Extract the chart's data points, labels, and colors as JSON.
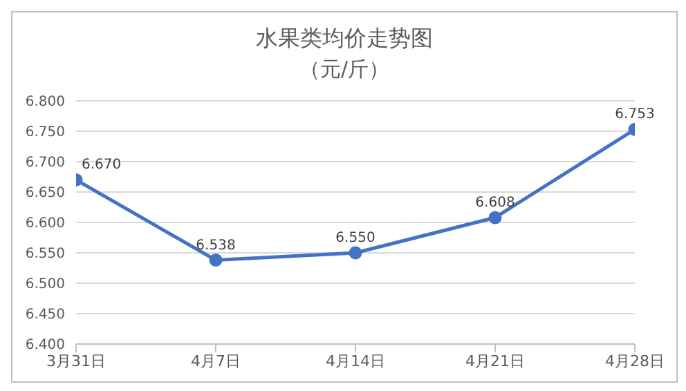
{
  "chart_data": {
    "type": "line",
    "title": "水果类均价走势图",
    "subtitle": "（元/斤）",
    "categories": [
      "3月31日",
      "4月7日",
      "4月14日",
      "4月21日",
      "4月28日"
    ],
    "series": [
      {
        "color": "#4472c4",
        "values": [
          6.67,
          6.538,
          6.55,
          6.608,
          6.753
        ],
        "value_labels": [
          "6.670",
          "6.538",
          "6.550",
          "6.608",
          "6.753"
        ]
      }
    ],
    "ylim": [
      6.4,
      6.8
    ],
    "yticks": [
      {
        "value": 6.4,
        "label": "6.400"
      },
      {
        "value": 6.45,
        "label": "6.450"
      },
      {
        "value": 6.5,
        "label": "6.500"
      },
      {
        "value": 6.55,
        "label": "6.550"
      },
      {
        "value": 6.6,
        "label": "6.600"
      },
      {
        "value": 6.65,
        "label": "6.650"
      },
      {
        "value": 6.7,
        "label": "6.700"
      },
      {
        "value": 6.75,
        "label": "6.750"
      },
      {
        "value": 6.8,
        "label": "6.800"
      }
    ],
    "grid": "y",
    "legend": false,
    "marker": "circle",
    "line_style": "solid"
  }
}
